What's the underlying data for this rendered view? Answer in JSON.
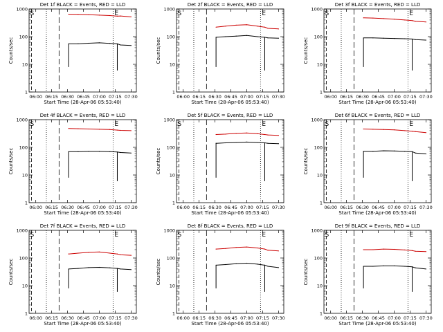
{
  "figure": {
    "ylabel": "Counts/sec",
    "xlabel": "Start Time (28-Apr-06 05:53:40)",
    "series_colors": {
      "events": "#000000",
      "lld": "#cc0000"
    },
    "marker_s": "S",
    "marker_e": "E"
  },
  "chart_data": [
    {
      "type": "line",
      "title": "Det 1f BLACK = Events, RED = LLD",
      "x_ticks": [
        "06:00",
        "06:15",
        "06:30",
        "06:45",
        "07:00",
        "07:15",
        "07:30"
      ],
      "y_ticks": [
        "1",
        "10",
        "100",
        "1000"
      ],
      "ylim": [
        1,
        1000
      ],
      "xlim": [
        "05:53:40",
        "07:35:00"
      ],
      "grid": false,
      "series": [
        {
          "name": "BLACK = Events",
          "x": [
            "06:31",
            "06:40",
            "06:50",
            "07:00",
            "07:10",
            "07:17",
            "07:20",
            "07:30"
          ],
          "y": [
            55,
            55,
            58,
            60,
            57,
            55,
            50,
            48
          ]
        },
        {
          "name": "RED = LLD",
          "x": [
            "06:31",
            "06:40",
            "06:50",
            "07:00",
            "07:10",
            "07:17",
            "07:20",
            "07:30"
          ],
          "y": [
            650,
            640,
            620,
            600,
            580,
            550,
            560,
            520
          ]
        }
      ]
    },
    {
      "type": "line",
      "title": "Det 2f BLACK = Events, RED = LLD",
      "x_ticks": [
        "06:00",
        "06:15",
        "06:30",
        "06:45",
        "07:00",
        "07:15",
        "07:30"
      ],
      "y_ticks": [
        "1",
        "10",
        "100",
        "1000"
      ],
      "ylim": [
        1,
        1000
      ],
      "xlim": [
        "05:53:40",
        "07:35:00"
      ],
      "grid": false,
      "series": [
        {
          "name": "BLACK = Events",
          "x": [
            "06:31",
            "06:40",
            "06:50",
            "07:00",
            "07:10",
            "07:17",
            "07:20",
            "07:30"
          ],
          "y": [
            95,
            100,
            105,
            110,
            100,
            95,
            90,
            88
          ]
        },
        {
          "name": "RED = LLD",
          "x": [
            "06:31",
            "06:40",
            "06:50",
            "07:00",
            "07:10",
            "07:17",
            "07:20",
            "07:30"
          ],
          "y": [
            220,
            240,
            260,
            270,
            240,
            220,
            200,
            190
          ]
        }
      ]
    },
    {
      "type": "line",
      "title": "Det 3f BLACK = Events, RED = LLD",
      "x_ticks": [
        "06:00",
        "06:15",
        "06:30",
        "06:45",
        "07:00",
        "07:15",
        "07:30"
      ],
      "y_ticks": [
        "1",
        "10",
        "100",
        "1000"
      ],
      "ylim": [
        1,
        1000
      ],
      "xlim": [
        "05:53:40",
        "07:35:00"
      ],
      "grid": false,
      "series": [
        {
          "name": "BLACK = Events",
          "x": [
            "06:31",
            "06:40",
            "06:50",
            "07:00",
            "07:10",
            "07:17",
            "07:20",
            "07:30"
          ],
          "y": [
            90,
            90,
            88,
            86,
            84,
            82,
            78,
            75
          ]
        },
        {
          "name": "RED = LLD",
          "x": [
            "06:31",
            "06:40",
            "06:50",
            "07:00",
            "07:10",
            "07:17",
            "07:20",
            "07:30"
          ],
          "y": [
            480,
            470,
            450,
            430,
            400,
            380,
            360,
            340
          ]
        }
      ]
    },
    {
      "type": "line",
      "title": "Det 4f BLACK = Events, RED = LLD",
      "x_ticks": [
        "06:00",
        "06:15",
        "06:30",
        "06:45",
        "07:00",
        "07:15",
        "07:30"
      ],
      "y_ticks": [
        "1",
        "10",
        "100",
        "1000"
      ],
      "ylim": [
        1,
        1000
      ],
      "xlim": [
        "05:53:40",
        "07:35:00"
      ],
      "grid": false,
      "series": [
        {
          "name": "BLACK = Events",
          "x": [
            "06:31",
            "06:40",
            "06:50",
            "07:00",
            "07:10",
            "07:17",
            "07:20",
            "07:30"
          ],
          "y": [
            70,
            70,
            72,
            72,
            70,
            68,
            65,
            62
          ]
        },
        {
          "name": "RED = LLD",
          "x": [
            "06:31",
            "06:40",
            "06:50",
            "07:00",
            "07:10",
            "07:17",
            "07:20",
            "07:30"
          ],
          "y": [
            480,
            470,
            460,
            450,
            440,
            420,
            410,
            400
          ]
        }
      ]
    },
    {
      "type": "line",
      "title": "Det 5f BLACK = Events, RED = LLD",
      "x_ticks": [
        "06:00",
        "06:15",
        "06:30",
        "06:45",
        "07:00",
        "07:15",
        "07:30"
      ],
      "y_ticks": [
        "1",
        "10",
        "100",
        "1000"
      ],
      "ylim": [
        1,
        1000
      ],
      "xlim": [
        "05:53:40",
        "07:35:00"
      ],
      "grid": false,
      "series": [
        {
          "name": "BLACK = Events",
          "x": [
            "06:31",
            "06:40",
            "06:50",
            "07:00",
            "07:10",
            "07:17",
            "07:20",
            "07:30"
          ],
          "y": [
            140,
            145,
            150,
            155,
            150,
            145,
            140,
            135
          ]
        },
        {
          "name": "RED = LLD",
          "x": [
            "06:31",
            "06:40",
            "06:50",
            "07:00",
            "07:10",
            "07:17",
            "07:20",
            "07:30"
          ],
          "y": [
            290,
            300,
            320,
            330,
            310,
            290,
            280,
            270
          ]
        }
      ]
    },
    {
      "type": "line",
      "title": "Det 6f BLACK = Events, RED = LLD",
      "x_ticks": [
        "06:00",
        "06:15",
        "06:30",
        "06:45",
        "07:00",
        "07:15",
        "07:30"
      ],
      "y_ticks": [
        "1",
        "10",
        "100",
        "1000"
      ],
      "ylim": [
        1,
        1000
      ],
      "xlim": [
        "05:53:40",
        "07:35:00"
      ],
      "grid": false,
      "series": [
        {
          "name": "BLACK = Events",
          "x": [
            "06:31",
            "06:40",
            "06:50",
            "07:00",
            "07:10",
            "07:17",
            "07:20",
            "07:30"
          ],
          "y": [
            72,
            72,
            75,
            74,
            72,
            70,
            62,
            58
          ]
        },
        {
          "name": "RED = LLD",
          "x": [
            "06:31",
            "06:40",
            "06:50",
            "07:00",
            "07:10",
            "07:17",
            "07:20",
            "07:30"
          ],
          "y": [
            460,
            450,
            440,
            430,
            400,
            380,
            370,
            340
          ]
        }
      ]
    },
    {
      "type": "line",
      "title": "Det 7f BLACK = Events, RED = LLD",
      "x_ticks": [
        "06:00",
        "06:15",
        "06:30",
        "06:45",
        "07:00",
        "07:15",
        "07:30"
      ],
      "y_ticks": [
        "1",
        "10",
        "100",
        "1000"
      ],
      "ylim": [
        1,
        1000
      ],
      "xlim": [
        "05:53:40",
        "07:35:00"
      ],
      "grid": false,
      "series": [
        {
          "name": "BLACK = Events",
          "x": [
            "06:31",
            "06:40",
            "06:50",
            "07:00",
            "07:10",
            "07:17",
            "07:20",
            "07:30"
          ],
          "y": [
            40,
            42,
            45,
            46,
            44,
            42,
            40,
            38
          ]
        },
        {
          "name": "RED = LLD",
          "x": [
            "06:31",
            "06:40",
            "06:50",
            "07:00",
            "07:10",
            "07:17",
            "07:20",
            "07:30"
          ],
          "y": [
            140,
            150,
            160,
            165,
            150,
            140,
            130,
            125
          ]
        }
      ]
    },
    {
      "type": "line",
      "title": "Det 8f BLACK = Events, RED = LLD",
      "x_ticks": [
        "06:00",
        "06:15",
        "06:30",
        "06:45",
        "07:00",
        "07:15",
        "07:30"
      ],
      "y_ticks": [
        "1",
        "10",
        "100",
        "1000"
      ],
      "ylim": [
        1,
        1000
      ],
      "xlim": [
        "05:53:40",
        "07:35:00"
      ],
      "grid": false,
      "series": [
        {
          "name": "BLACK = Events",
          "x": [
            "06:31",
            "06:40",
            "06:50",
            "07:00",
            "07:10",
            "07:17",
            "07:20",
            "07:30"
          ],
          "y": [
            55,
            58,
            62,
            65,
            60,
            55,
            50,
            45
          ]
        },
        {
          "name": "RED = LLD",
          "x": [
            "06:31",
            "06:40",
            "06:50",
            "07:00",
            "07:10",
            "07:17",
            "07:20",
            "07:30"
          ],
          "y": [
            210,
            220,
            240,
            250,
            230,
            210,
            190,
            180
          ]
        }
      ]
    },
    {
      "type": "line",
      "title": "Det 9f BLACK = Events, RED = LLD",
      "x_ticks": [
        "06:00",
        "06:15",
        "06:30",
        "06:45",
        "07:00",
        "07:15",
        "07:30"
      ],
      "y_ticks": [
        "1",
        "10",
        "100",
        "1000"
      ],
      "ylim": [
        1,
        1000
      ],
      "xlim": [
        "05:53:40",
        "07:35:00"
      ],
      "grid": false,
      "series": [
        {
          "name": "BLACK = Events",
          "x": [
            "06:31",
            "06:40",
            "06:50",
            "07:00",
            "07:10",
            "07:17",
            "07:20",
            "07:30"
          ],
          "y": [
            50,
            50,
            52,
            52,
            50,
            48,
            44,
            40
          ]
        },
        {
          "name": "RED = LLD",
          "x": [
            "06:31",
            "06:40",
            "06:50",
            "07:00",
            "07:10",
            "07:17",
            "07:20",
            "07:30"
          ],
          "y": [
            200,
            200,
            210,
            205,
            195,
            185,
            175,
            170
          ]
        }
      ]
    }
  ]
}
